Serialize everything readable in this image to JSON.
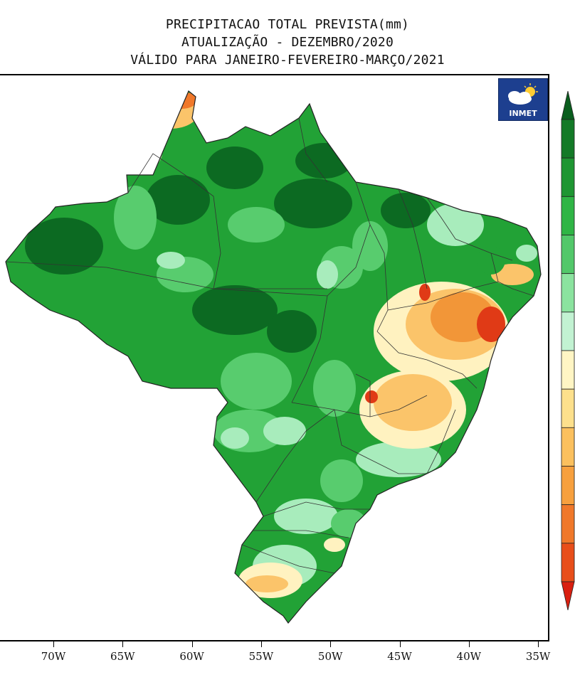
{
  "title": {
    "line1": "PRECIPITACAO TOTAL PREVISTA(mm)",
    "line2": "ATUALIZAÇÃO - DEZEMBRO/2020",
    "line3": "VÁLIDO PARA JANEIRO-FEVEREIRO-MARÇO/2021"
  },
  "logo": {
    "text": "INMET",
    "icon": "cloud-sun-icon"
  },
  "x_axis": {
    "ticks": [
      {
        "label": "70W"
      },
      {
        "label": "65W"
      },
      {
        "label": "60W"
      },
      {
        "label": "55W"
      },
      {
        "label": "50W"
      },
      {
        "label": "45W"
      },
      {
        "label": "40W"
      },
      {
        "label": "35W"
      }
    ]
  },
  "colorbar": {
    "colors": [
      "#0a5e1e",
      "#137a27",
      "#1e9632",
      "#2fb545",
      "#52c86a",
      "#8be39f",
      "#c2f2d2",
      "#fff5c4",
      "#fde08c",
      "#fbc05e",
      "#f7a03e",
      "#f0782a",
      "#e84e1a",
      "#d91f10"
    ]
  },
  "palette": {
    "dark_green": "#0c6a22",
    "green": "#22a236",
    "light_green": "#58cc6e",
    "pale_green": "#a8ecbc",
    "cream": "#fff2c0",
    "light_orange": "#fbc46a",
    "orange": "#f29638",
    "red": "#e03a16"
  }
}
